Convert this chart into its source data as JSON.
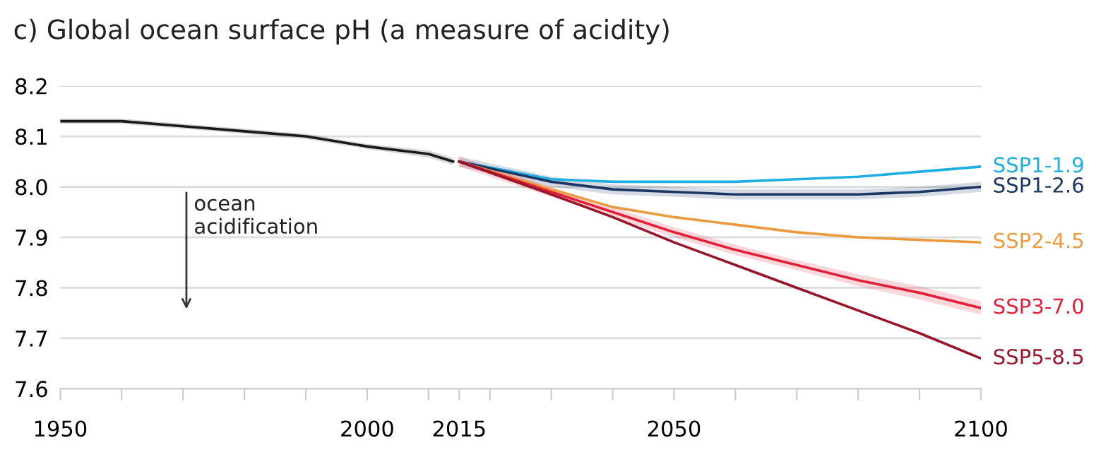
{
  "chart_data": {
    "type": "line",
    "title": "c) Global ocean surface pH (a measure of acidity)",
    "xlim": [
      1950,
      2100
    ],
    "ylim": [
      7.6,
      8.2
    ],
    "xticks": [
      {
        "value": 1950,
        "label": "1950"
      },
      {
        "value": 1960,
        "label": null
      },
      {
        "value": 1970,
        "label": null
      },
      {
        "value": 1980,
        "label": null
      },
      {
        "value": 1990,
        "label": null
      },
      {
        "value": 2000,
        "label": "2000"
      },
      {
        "value": 2010,
        "label": null
      },
      {
        "value": 2015,
        "label": "2015"
      },
      {
        "value": 2020,
        "label": null
      },
      {
        "value": 2030,
        "label": null
      },
      {
        "value": 2040,
        "label": null
      },
      {
        "value": 2050,
        "label": "2050"
      },
      {
        "value": 2060,
        "label": null
      },
      {
        "value": 2070,
        "label": null
      },
      {
        "value": 2080,
        "label": null
      },
      {
        "value": 2090,
        "label": null
      },
      {
        "value": 2100,
        "label": "2100"
      }
    ],
    "yticks": [
      {
        "value": 7.6,
        "label": "7.6"
      },
      {
        "value": 7.7,
        "label": "7.7"
      },
      {
        "value": 7.8,
        "label": "7.8"
      },
      {
        "value": 7.9,
        "label": "7.9"
      },
      {
        "value": 8.0,
        "label": "8.0"
      },
      {
        "value": 8.1,
        "label": "8.1"
      },
      {
        "value": 8.2,
        "label": "8.2"
      }
    ],
    "grid": "y",
    "legend": false,
    "annotations": [
      "ocean\nacidification"
    ],
    "series": [
      {
        "color": "#1a1a1a",
        "x": [
          1950,
          1960,
          1970,
          1980,
          1990,
          2000,
          2010,
          2014
        ],
        "values": [
          8.13,
          8.13,
          8.12,
          8.11,
          8.1,
          8.08,
          8.065,
          8.05
        ],
        "lower": [
          8.125,
          8.125,
          8.115,
          8.105,
          8.095,
          8.075,
          8.058,
          8.043
        ],
        "upper": [
          8.135,
          8.135,
          8.125,
          8.115,
          8.105,
          8.085,
          8.072,
          8.057
        ]
      },
      {
        "name": "SSP1-1.9",
        "color": "#1eaee0",
        "x": [
          2015,
          2030,
          2040,
          2050,
          2060,
          2070,
          2080,
          2090,
          2100
        ],
        "values": [
          8.05,
          8.015,
          8.01,
          8.01,
          8.01,
          8.015,
          8.02,
          8.03,
          8.04
        ]
      },
      {
        "name": "SSP1-2.6",
        "color": "#1c3664",
        "x": [
          2015,
          2030,
          2040,
          2050,
          2060,
          2070,
          2080,
          2090,
          2100
        ],
        "values": [
          8.05,
          8.01,
          7.995,
          7.99,
          7.985,
          7.985,
          7.985,
          7.99,
          8.0
        ],
        "lower": [
          8.04,
          8.0,
          7.985,
          7.98,
          7.975,
          7.975,
          7.975,
          7.98,
          7.99
        ],
        "upper": [
          8.06,
          8.02,
          8.005,
          8.0,
          7.995,
          7.995,
          7.995,
          8.0,
          8.01
        ]
      },
      {
        "name": "SSP2-4.5",
        "color": "#ea9a3f",
        "x": [
          2015,
          2030,
          2040,
          2050,
          2060,
          2070,
          2080,
          2090,
          2100
        ],
        "values": [
          8.05,
          7.995,
          7.96,
          7.94,
          7.925,
          7.91,
          7.9,
          7.895,
          7.89
        ]
      },
      {
        "name": "SSP3-7.0",
        "color": "#e3203a",
        "x": [
          2015,
          2030,
          2040,
          2050,
          2060,
          2070,
          2080,
          2090,
          2100
        ],
        "values": [
          8.05,
          7.99,
          7.95,
          7.91,
          7.875,
          7.845,
          7.815,
          7.79,
          7.76
        ],
        "lower": [
          8.04,
          7.98,
          7.94,
          7.9,
          7.865,
          7.835,
          7.803,
          7.777,
          7.747
        ],
        "upper": [
          8.06,
          8.0,
          7.96,
          7.92,
          7.885,
          7.855,
          7.827,
          7.803,
          7.773
        ]
      },
      {
        "name": "SSP5-8.5",
        "color": "#98152a",
        "x": [
          2015,
          2030,
          2040,
          2050,
          2060,
          2070,
          2080,
          2090,
          2100
        ],
        "values": [
          8.05,
          7.985,
          7.94,
          7.89,
          7.845,
          7.8,
          7.755,
          7.71,
          7.66
        ]
      }
    ]
  }
}
